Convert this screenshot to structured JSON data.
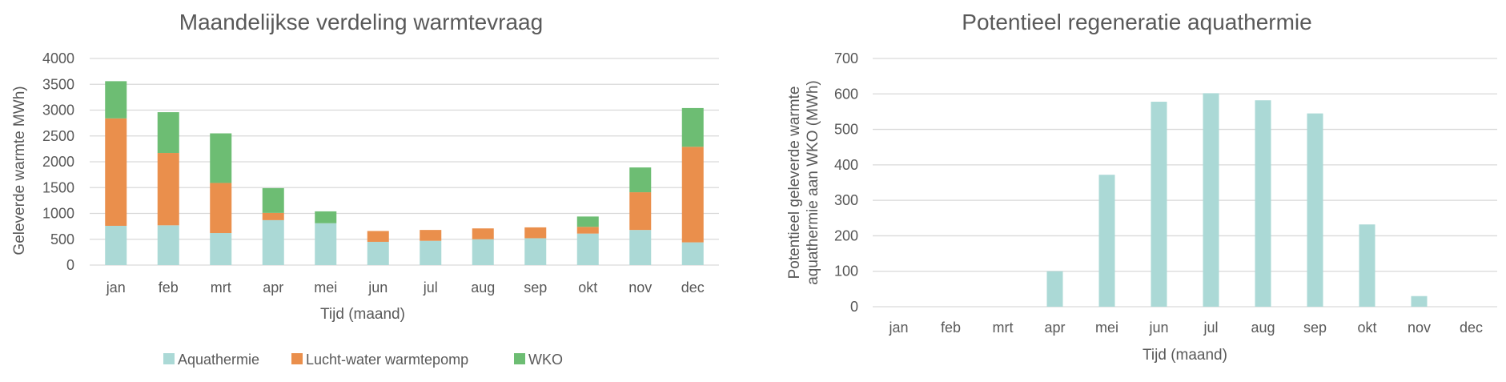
{
  "colors": {
    "aquathermie": "#abd9d6",
    "lucht_water": "#ea8f4c",
    "wko": "#6dbd73",
    "grid": "#d9d9d9",
    "text": "#595959"
  },
  "chart_data": [
    {
      "type": "bar",
      "stacked": true,
      "title": "Maandelijkse verdeling warmtevraag",
      "xlabel": "Tijd (maand)",
      "ylabel": "Geleverde warmte MWh)",
      "ylim": [
        0,
        4000
      ],
      "yticks": [
        0,
        500,
        1000,
        1500,
        2000,
        2500,
        3000,
        3500,
        4000
      ],
      "grid": true,
      "legend_position": "bottom",
      "categories": [
        "jan",
        "feb",
        "mrt",
        "apr",
        "mei",
        "jun",
        "jul",
        "aug",
        "sep",
        "okt",
        "nov",
        "dec"
      ],
      "series": [
        {
          "name": "Aquathermie",
          "color_key": "aquathermie",
          "values": [
            760,
            770,
            620,
            870,
            810,
            450,
            470,
            500,
            520,
            610,
            680,
            440
          ]
        },
        {
          "name": "Lucht-water warmtepomp",
          "color_key": "lucht_water",
          "values": [
            2080,
            1400,
            970,
            140,
            0,
            210,
            210,
            210,
            210,
            130,
            730,
            1850
          ]
        },
        {
          "name": "WKO",
          "color_key": "wko",
          "values": [
            720,
            790,
            960,
            480,
            230,
            0,
            0,
            0,
            0,
            200,
            480,
            750
          ]
        }
      ]
    },
    {
      "type": "bar",
      "title": "Potentieel regeneratie aquathermie",
      "xlabel": "Tijd (maand)",
      "ylabel_lines": [
        "Potentieel geleverde warmte",
        "aquathermie aan WKO (MWh)"
      ],
      "ylim": [
        0,
        700
      ],
      "yticks": [
        0,
        100,
        200,
        300,
        400,
        500,
        600,
        700
      ],
      "grid": true,
      "categories": [
        "jan",
        "feb",
        "mrt",
        "apr",
        "mei",
        "jun",
        "jul",
        "aug",
        "sep",
        "okt",
        "nov",
        "dec"
      ],
      "series": [
        {
          "color_key": "aquathermie",
          "values": [
            0,
            0,
            0,
            100,
            372,
            578,
            602,
            582,
            545,
            232,
            30,
            0
          ]
        }
      ]
    }
  ]
}
